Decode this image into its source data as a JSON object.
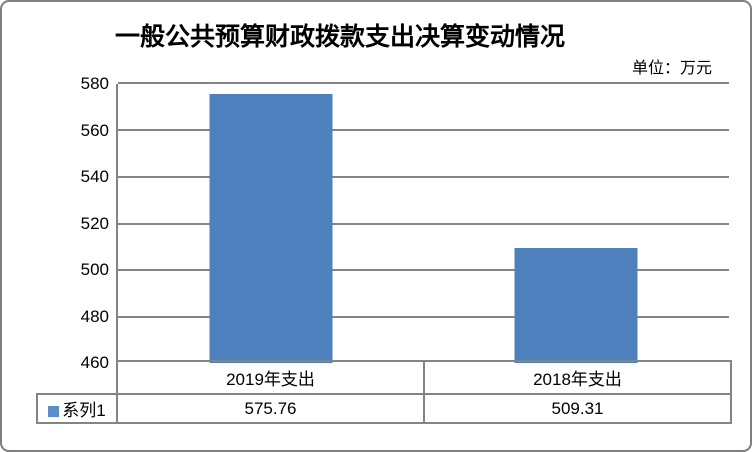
{
  "title": "一般公共预算财政拨款支出决算变动情况",
  "unit_label": "单位：万元",
  "chart_data": {
    "type": "bar",
    "title": "一般公共预算财政拨款支出决算变动情况",
    "unit": "单位：万元",
    "categories": [
      "2019年支出",
      "2018年支出"
    ],
    "series": [
      {
        "name": "系列1",
        "values": [
          575.76,
          509.31
        ]
      }
    ],
    "ylim": [
      460,
      580
    ],
    "ytick_step": 20,
    "yticks": [
      "580",
      "560",
      "540",
      "520",
      "500",
      "480",
      "460"
    ],
    "grid": true,
    "legend_position": "bottom-left-table",
    "colors": {
      "bar": "#4d80bc",
      "legend_swatch": "#5b8dc8",
      "gridline": "#848484",
      "outer_border": "#7f7f7f",
      "text": "#000000"
    }
  }
}
